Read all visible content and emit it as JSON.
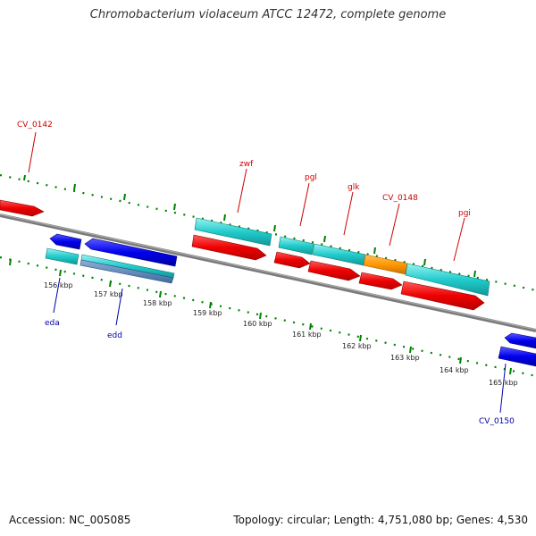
{
  "title": "Chromobacterium violaceum ATCC 12472, complete genome",
  "footer": {
    "accession": "Accession: NC_005085",
    "stats": "Topology: circular; Length: 4,751,080 bp; Genes: 4,530"
  },
  "colors": {
    "backbone": "#808080",
    "forward_cds": "#ff0000",
    "reverse_cds": "#0000ee",
    "tick": "#008000",
    "cyan_feature": "#00c8c8",
    "orange_feature": "#ff9900",
    "label_forward": "#cc0000",
    "label_reverse": "#0000aa"
  },
  "kbp_labels": [
    "156 kbp",
    "157 kbp",
    "158 kbp",
    "159 kbp",
    "160 kbp",
    "161 kbp",
    "162 kbp",
    "163 kbp",
    "164 kbp",
    "165 kbp"
  ],
  "gene_labels": {
    "top": [
      "CV_0142",
      "zwf",
      "pgl",
      "glk",
      "CV_0148",
      "pgi"
    ],
    "bottom": [
      "eda",
      "edd",
      "CV_0150"
    ]
  }
}
